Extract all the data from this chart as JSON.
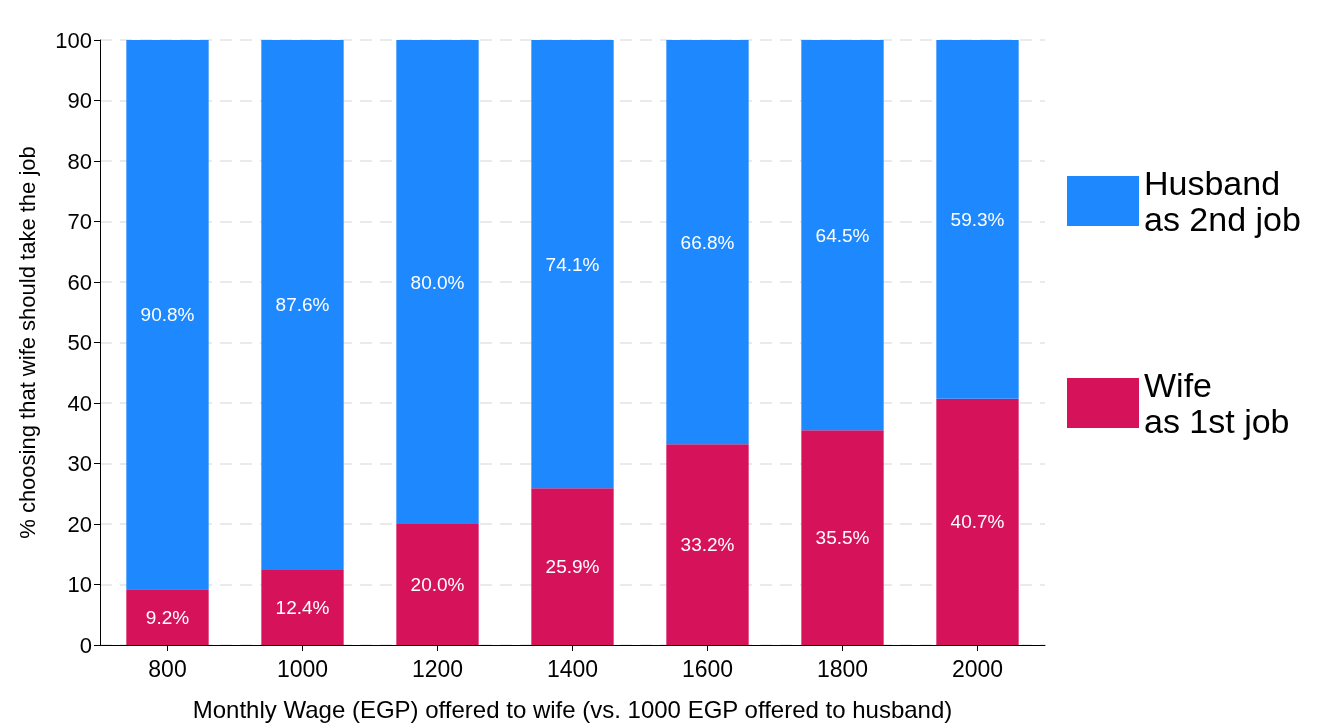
{
  "chart_data": {
    "type": "bar",
    "stacked": true,
    "xlabel": "Monthly Wage (EGP) offered to wife (vs. 1000 EGP offered to husband)",
    "ylabel": "% choosing that wife should take the job",
    "categories": [
      "800",
      "1000",
      "1200",
      "1400",
      "1600",
      "1800",
      "2000"
    ],
    "series": [
      {
        "name": "Wife\nas 1st job",
        "color": "#d6135a",
        "values": [
          9.2,
          12.4,
          20.0,
          25.9,
          33.2,
          35.5,
          40.7
        ],
        "value_labels": [
          "9.2%",
          "12.4%",
          "20.0%",
          "25.9%",
          "33.2%",
          "35.5%",
          "40.7%"
        ]
      },
      {
        "name": "Husband\nas 2nd job",
        "color": "#1e88ff",
        "values": [
          90.8,
          87.6,
          80.0,
          74.1,
          66.8,
          64.5,
          59.3
        ],
        "value_labels": [
          "90.8%",
          "87.6%",
          "80.0%",
          "74.1%",
          "66.8%",
          "64.5%",
          "59.3%"
        ]
      }
    ],
    "ylim": [
      0,
      100
    ],
    "yticks": [
      0,
      10,
      20,
      30,
      40,
      50,
      60,
      70,
      80,
      90,
      100
    ],
    "grid": "y",
    "legend": "right"
  }
}
